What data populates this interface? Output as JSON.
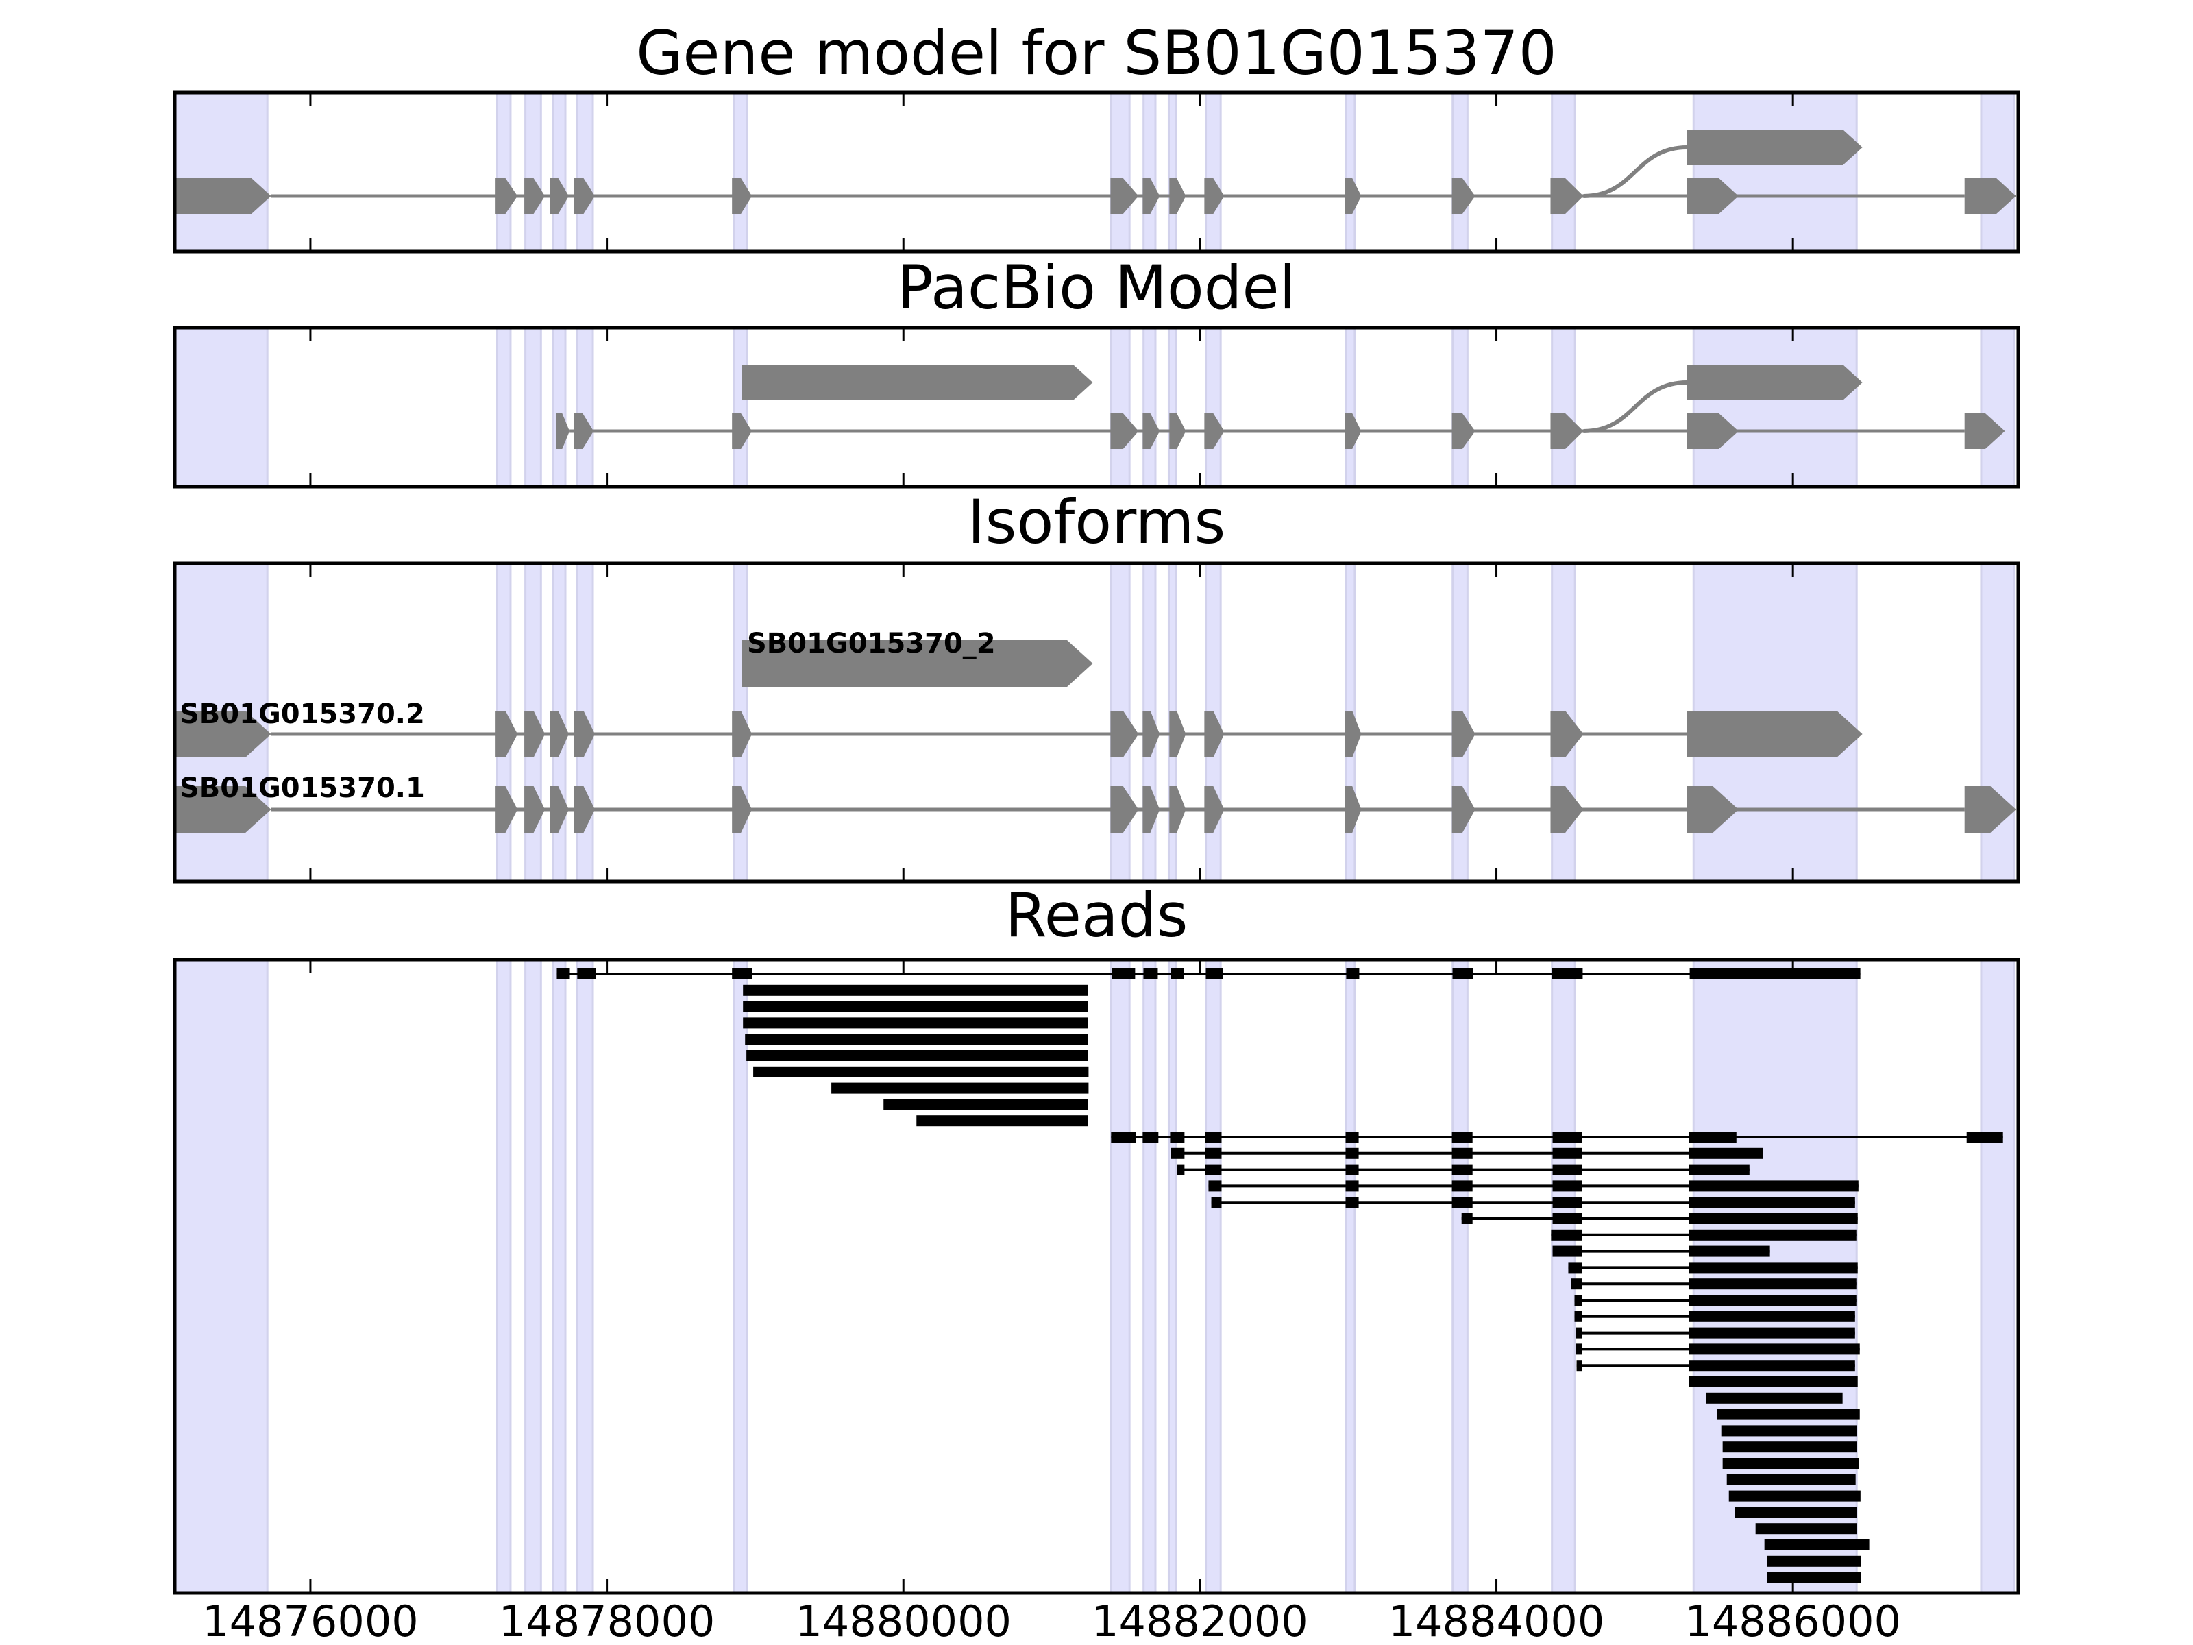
{
  "chart_data": {
    "type": "gene-structure-tracks",
    "xlim": [
      14875085,
      14887520
    ],
    "x_ticks": [
      14876000,
      14878000,
      14880000,
      14882000,
      14884000,
      14886000
    ],
    "x_tick_labels": [
      "14876000",
      "14878000",
      "14880000",
      "14882000",
      "14884000",
      "14886000"
    ],
    "colors": {
      "exon": "#808080",
      "intron": "#808080",
      "read": "#000000",
      "highlight": "#e1e1fb",
      "highlight_edge": "#d2d2ec",
      "frame": "#000000"
    },
    "highlight_regions": [
      [
        14875085,
        14875710
      ],
      [
        14877260,
        14877350
      ],
      [
        14877450,
        14877555
      ],
      [
        14877635,
        14877720
      ],
      [
        14877800,
        14877905
      ],
      [
        14878855,
        14878945
      ],
      [
        14881400,
        14881525
      ],
      [
        14881620,
        14881700
      ],
      [
        14881790,
        14881840
      ],
      [
        14882040,
        14882140
      ],
      [
        14882985,
        14883045
      ],
      [
        14883705,
        14883805
      ],
      [
        14884375,
        14884530
      ],
      [
        14885330,
        14886430
      ],
      [
        14887270,
        14887490
      ]
    ],
    "panels": [
      {
        "title": "Gene model for SB01G015370",
        "transcripts": [
          {
            "row": 0,
            "exons": [
              [
                14875085,
                14875735
              ],
              [
                14877249,
                14877397
              ],
              [
                14877443,
                14877582
              ],
              [
                14877614,
                14877743
              ],
              [
                14877780,
                14877919
              ],
              [
                14878844,
                14878978
              ],
              [
                14881397,
                14881586
              ],
              [
                14881614,
                14881729
              ],
              [
                14881794,
                14881905
              ],
              [
                14882030,
                14882164
              ],
              [
                14882978,
                14883089
              ],
              [
                14883700,
                14883857
              ],
              [
                14884365,
                14884587
              ],
              [
                14885286,
                14885633
              ],
              [
                14887158,
                14887505
              ]
            ]
          },
          {
            "row": 1,
            "branch_from": 14884587,
            "exons": [
              [
                14885286,
                14886469
              ]
            ]
          }
        ]
      },
      {
        "title": "PacBio Model",
        "transcripts": [
          {
            "row": 0,
            "exons": [
              [
                14877658,
                14877748
              ],
              [
                14877776,
                14877910
              ],
              [
                14878844,
                14878978
              ],
              [
                14881397,
                14881586
              ],
              [
                14881614,
                14881729
              ],
              [
                14881794,
                14881905
              ],
              [
                14882030,
                14882164
              ],
              [
                14882978,
                14883089
              ],
              [
                14883700,
                14883857
              ],
              [
                14884365,
                14884587
              ],
              [
                14885286,
                14885633
              ],
              [
                14887158,
                14887430
              ]
            ]
          },
          {
            "row": 1,
            "branch_from": 14884587,
            "exons": [
              [
                14885286,
                14886469
              ]
            ]
          },
          {
            "row": 2,
            "exons": [
              [
                14878908,
                14881277
              ]
            ]
          }
        ]
      },
      {
        "title": "Isoforms",
        "transcripts": [
          {
            "name": "SB01G015370_2",
            "row": 2,
            "exons": [
              [
                14878908,
                14881277
              ]
            ]
          },
          {
            "name": "SB01G015370.2",
            "row": 1,
            "exons": [
              [
                14875085,
                14875735
              ],
              [
                14877249,
                14877397
              ],
              [
                14877443,
                14877582
              ],
              [
                14877614,
                14877743
              ],
              [
                14877780,
                14877919
              ],
              [
                14878844,
                14878978
              ],
              [
                14881397,
                14881586
              ],
              [
                14881614,
                14881729
              ],
              [
                14881794,
                14881905
              ],
              [
                14882030,
                14882164
              ],
              [
                14882978,
                14883089
              ],
              [
                14883700,
                14883857
              ],
              [
                14884365,
                14884587
              ],
              [
                14885286,
                14886469
              ]
            ]
          },
          {
            "name": "SB01G015370.1",
            "row": 0,
            "exons": [
              [
                14875085,
                14875735
              ],
              [
                14877249,
                14877397
              ],
              [
                14877443,
                14877582
              ],
              [
                14877614,
                14877743
              ],
              [
                14877780,
                14877919
              ],
              [
                14878844,
                14878978
              ],
              [
                14881397,
                14881586
              ],
              [
                14881614,
                14881729
              ],
              [
                14881794,
                14881905
              ],
              [
                14882030,
                14882164
              ],
              [
                14882978,
                14883089
              ],
              [
                14883700,
                14883857
              ],
              [
                14884365,
                14884587
              ],
              [
                14885286,
                14885633
              ],
              [
                14887158,
                14887505
              ]
            ]
          }
        ]
      },
      {
        "title": "Reads",
        "reads": [
          [
            [
              14877662,
              14877750
            ],
            [
              14877800,
              14877925
            ],
            [
              14878844,
              14878978
            ],
            [
              14881406,
              14881563
            ],
            [
              14881619,
              14881716
            ],
            [
              14881803,
              14881891
            ],
            [
              14882040,
              14882155
            ],
            [
              14882987,
              14883075
            ],
            [
              14883704,
              14883843
            ],
            [
              14884374,
              14884582
            ],
            [
              14885304,
              14886455
            ]
          ],
          [
            [
              14878918,
              14881244
            ]
          ],
          [
            [
              14878918,
              14881244
            ]
          ],
          [
            [
              14878918,
              14881244
            ]
          ],
          [
            [
              14878932,
              14881244
            ]
          ],
          [
            [
              14878941,
              14881244
            ]
          ],
          [
            [
              14878987,
              14881249
            ]
          ],
          [
            [
              14879514,
              14881249
            ]
          ],
          [
            [
              14879866,
              14881244
            ]
          ],
          [
            [
              14880088,
              14881244
            ]
          ],
          [
            [
              14881401,
              14881568
            ],
            [
              14881614,
              14881720
            ],
            [
              14881799,
              14881896
            ],
            [
              14882035,
              14882146
            ],
            [
              14882983,
              14883071
            ],
            [
              14883700,
              14883839
            ],
            [
              14884379,
              14884578
            ],
            [
              14885300,
              14885619
            ],
            [
              14887172,
              14887417
            ]
          ],
          [
            [
              14881803,
              14881896
            ],
            [
              14882035,
              14882146
            ],
            [
              14882983,
              14883071
            ],
            [
              14883700,
              14883839
            ],
            [
              14884379,
              14884578
            ],
            [
              14885300,
              14885800
            ]
          ],
          [
            [
              14881845,
              14881896
            ],
            [
              14882035,
              14882146
            ],
            [
              14882983,
              14883071
            ],
            [
              14883700,
              14883839
            ],
            [
              14884379,
              14884578
            ],
            [
              14885300,
              14885707
            ]
          ],
          [
            [
              14882058,
              14882146
            ],
            [
              14882983,
              14883071
            ],
            [
              14883700,
              14883839
            ],
            [
              14884379,
              14884578
            ],
            [
              14885300,
              14886442
            ]
          ],
          [
            [
              14882077,
              14882146
            ],
            [
              14882983,
              14883071
            ],
            [
              14883700,
              14883839
            ],
            [
              14884379,
              14884578
            ],
            [
              14885300,
              14886419
            ]
          ],
          [
            [
              14883765,
              14883839
            ],
            [
              14884379,
              14884578
            ],
            [
              14885300,
              14886437
            ]
          ],
          [
            [
              14884369,
              14884578
            ],
            [
              14885300,
              14886428
            ]
          ],
          [
            [
              14884379,
              14884578
            ],
            [
              14885300,
              14885845
            ]
          ],
          [
            [
              14884485,
              14884578
            ],
            [
              14885300,
              14886437
            ]
          ],
          [
            [
              14884503,
              14884578
            ],
            [
              14885300,
              14886428
            ]
          ],
          [
            [
              14884527,
              14884578
            ],
            [
              14885300,
              14886428
            ]
          ],
          [
            [
              14884527,
              14884578
            ],
            [
              14885300,
              14886419
            ]
          ],
          [
            [
              14884536,
              14884578
            ],
            [
              14885300,
              14886419
            ]
          ],
          [
            [
              14884536,
              14884578
            ],
            [
              14885300,
              14886451
            ]
          ],
          [
            [
              14884541,
              14884578
            ],
            [
              14885300,
              14886419
            ]
          ],
          [
            [
              14885300,
              14886437
            ]
          ],
          [
            [
              14885415,
              14886335
            ]
          ],
          [
            [
              14885489,
              14886451
            ]
          ],
          [
            [
              14885517,
              14886433
            ]
          ],
          [
            [
              14885526,
              14886433
            ]
          ],
          [
            [
              14885526,
              14886446
            ]
          ],
          [
            [
              14885554,
              14886423
            ]
          ],
          [
            [
              14885568,
              14886456
            ]
          ],
          [
            [
              14885609,
              14886433
            ]
          ],
          [
            [
              14885748,
              14886433
            ]
          ],
          [
            [
              14885808,
              14886515
            ]
          ],
          [
            [
              14885827,
              14886460
            ]
          ],
          [
            [
              14885827,
              14886460
            ]
          ]
        ]
      }
    ]
  }
}
